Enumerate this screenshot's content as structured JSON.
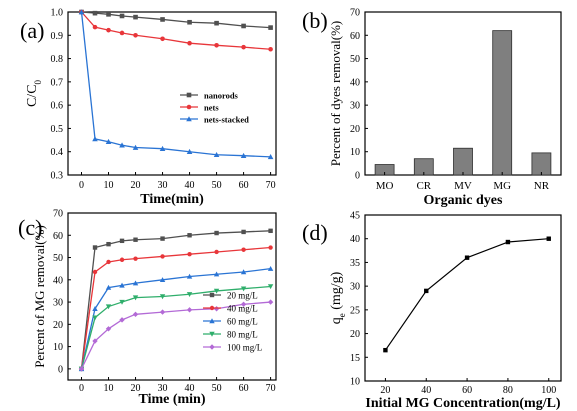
{
  "chart_data": [
    {
      "panel": "(a)",
      "type": "line",
      "xlabel": "Time(min)",
      "ylabel": "C/C",
      "ylabel_sub": "0",
      "xlim": [
        -5,
        72
      ],
      "ylim": [
        0.3,
        1.0
      ],
      "xticks": [
        "0",
        "10",
        "20",
        "30",
        "40",
        "50",
        "60",
        "70"
      ],
      "yticks": [
        "0.3",
        "0.4",
        "0.5",
        "0.6",
        "0.7",
        "0.8",
        "0.9",
        "1.0"
      ],
      "x": [
        0,
        5,
        10,
        15,
        20,
        30,
        40,
        50,
        60,
        70
      ],
      "legend_position": "center-right",
      "series": [
        {
          "name": "nanorods",
          "color": "#505050",
          "marker": "square",
          "values": [
            1.0,
            0.995,
            0.99,
            0.983,
            0.978,
            0.968,
            0.956,
            0.952,
            0.94,
            0.933
          ]
        },
        {
          "name": "nets",
          "color": "#e8363a",
          "marker": "circle",
          "values": [
            1.0,
            0.935,
            0.922,
            0.91,
            0.9,
            0.885,
            0.866,
            0.857,
            0.849,
            0.84
          ]
        },
        {
          "name": "nets-stacked",
          "color": "#2a74d4",
          "marker": "triangle",
          "values": [
            1.0,
            0.455,
            0.443,
            0.428,
            0.418,
            0.413,
            0.4,
            0.387,
            0.383,
            0.378
          ]
        }
      ]
    },
    {
      "panel": "(b)",
      "type": "bar",
      "xlabel": "Organic dyes",
      "ylabel": "Percent of dyes removal(%)",
      "ylim": [
        0,
        70
      ],
      "yticks": [
        "0",
        "10",
        "20",
        "30",
        "40",
        "50",
        "60",
        "70"
      ],
      "categories": [
        "MO",
        "CR",
        "MV",
        "MG",
        "NR"
      ],
      "values": [
        4.5,
        7,
        11.5,
        62,
        9.5
      ],
      "bar_color": "#7f7f7f"
    },
    {
      "panel": "(c)",
      "type": "line",
      "xlabel": "Time (min)",
      "ylabel": "Percent of MG removal(%)",
      "xlim": [
        -5,
        72
      ],
      "ylim": [
        -5,
        70
      ],
      "xticks": [
        "0",
        "10",
        "20",
        "30",
        "40",
        "50",
        "60",
        "70"
      ],
      "yticks": [
        "0",
        "10",
        "20",
        "30",
        "40",
        "50",
        "60",
        "70"
      ],
      "x": [
        0,
        5,
        10,
        15,
        20,
        30,
        40,
        50,
        60,
        70
      ],
      "legend_position": "bottom-right",
      "series": [
        {
          "name": "20 mg/L",
          "color": "#505050",
          "marker": "square",
          "values": [
            0,
            54.5,
            56,
            57.5,
            58,
            58.5,
            60,
            61,
            61.5,
            62
          ]
        },
        {
          "name": "40 mg/L",
          "color": "#e8363a",
          "marker": "circle",
          "values": [
            0,
            43.5,
            48,
            49,
            49.5,
            50.5,
            51.5,
            52.5,
            53.5,
            54.5
          ]
        },
        {
          "name": "60 mg/L",
          "color": "#2a74d4",
          "marker": "triangle",
          "values": [
            0,
            27,
            36.5,
            37.5,
            38.5,
            40,
            41.5,
            42.5,
            43.5,
            45
          ]
        },
        {
          "name": "80 mg/L",
          "color": "#2fae6b",
          "marker": "triangle-down",
          "values": [
            0,
            23,
            28,
            30,
            32,
            32.5,
            33.5,
            35,
            36,
            37
          ]
        },
        {
          "name": "100 mg/L",
          "color": "#b36ad6",
          "marker": "diamond",
          "values": [
            0,
            12.5,
            18,
            22,
            24.5,
            25.5,
            26.5,
            27,
            29,
            30
          ]
        }
      ]
    },
    {
      "panel": "(d)",
      "type": "line",
      "xlabel": "Initial MG Concentration(mg/L)",
      "ylabel": "q",
      "ylabel_sub": "e",
      "ylabel_tail": " (mg/g)",
      "xlim": [
        10,
        106
      ],
      "ylim": [
        10,
        45
      ],
      "xticks": [
        "20",
        "40",
        "60",
        "80",
        "100"
      ],
      "yticks": [
        "10",
        "15",
        "20",
        "25",
        "30",
        "35",
        "40",
        "45"
      ],
      "x": [
        20,
        40,
        60,
        80,
        100
      ],
      "series": [
        {
          "color": "#000000",
          "marker": "square",
          "values": [
            16.5,
            29,
            36,
            39.3,
            40
          ]
        }
      ]
    }
  ]
}
